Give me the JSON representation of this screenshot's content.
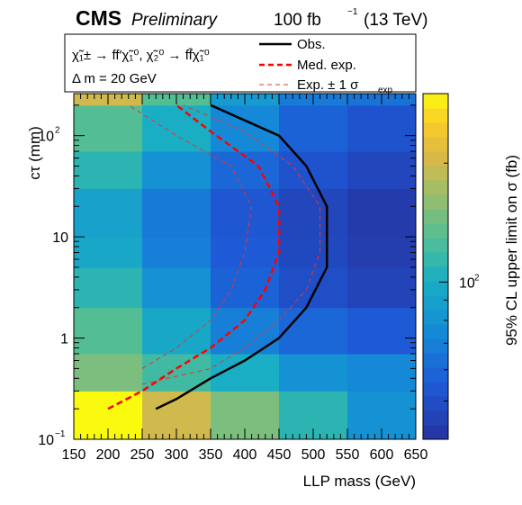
{
  "header": {
    "experiment": "CMS",
    "status": "Preliminary",
    "lumi_prefix": "100 fb",
    "lumi_exp": "−1",
    "energy": "(13 TeV)"
  },
  "legend": {
    "process_line1": "χ̃",
    "process_text": "χ̃₁± → ff′χ̃₁⁰, χ̃₂⁰ → ff̄χ̃₁⁰",
    "delta_m": "Δ m = 20 GeV",
    "obs_label": "Obs.",
    "med_label": "Med. exp.",
    "exp_label": "Exp. ± 1 σ",
    "exp_sub": "exp"
  },
  "colors": {
    "observed": "#000000",
    "median": "#ff0000",
    "band": "#e8332e"
  },
  "chart_data": {
    "type": "heatmap",
    "xlabel": "LLP mass (GeV)",
    "ylabel": "cτ (mm)",
    "zlabel": "95% CL upper limit on σ (fb)",
    "xlim": [
      150,
      650
    ],
    "ylim": [
      0.1,
      260
    ],
    "y_scale": "log",
    "z_scale": "log",
    "x_ticks": [
      "150",
      "200",
      "250",
      "300",
      "350",
      "400",
      "450",
      "500",
      "550",
      "600",
      "650"
    ],
    "y_ticks": [
      {
        "value": 0.1,
        "base": "10",
        "exp": "−1"
      },
      {
        "value": 1,
        "base": "1",
        "exp": ""
      },
      {
        "value": 10,
        "base": "10",
        "exp": ""
      },
      {
        "value": 100,
        "base": "10",
        "exp": "2"
      }
    ],
    "z_ticks": [
      {
        "value": 100,
        "base": "10",
        "exp": "2"
      }
    ],
    "x_bins": [
      150,
      250,
      350,
      450,
      550,
      650
    ],
    "y_bins": [
      0.1,
      0.2,
      0.3,
      0.5,
      0.7,
      1,
      2,
      3,
      5,
      7,
      10,
      20,
      30,
      50,
      70,
      100,
      200,
      260
    ],
    "z_range": [
      40,
      300
    ],
    "cells": [
      [
        300,
        200,
        150,
        110,
        80
      ],
      [
        300,
        200,
        150,
        110,
        80
      ],
      [
        150,
        120,
        100,
        80,
        75
      ],
      [
        150,
        120,
        100,
        80,
        75
      ],
      [
        130,
        95,
        70,
        60,
        55
      ],
      [
        130,
        95,
        70,
        60,
        55
      ],
      [
        110,
        80,
        58,
        50,
        46
      ],
      [
        110,
        80,
        58,
        50,
        46
      ],
      [
        95,
        70,
        55,
        48,
        44
      ],
      [
        95,
        70,
        55,
        48,
        44
      ],
      [
        90,
        68,
        54,
        47,
        43
      ],
      [
        90,
        68,
        54,
        47,
        43
      ],
      [
        110,
        80,
        60,
        52,
        47
      ],
      [
        110,
        80,
        60,
        52,
        47
      ],
      [
        130,
        100,
        75,
        58,
        52
      ],
      [
        130,
        100,
        75,
        58,
        52
      ],
      [
        200,
        130,
        85,
        68,
        65
      ]
    ],
    "series": [
      {
        "name": "Obs.",
        "style": "solid",
        "points": [
          [
            270,
            0.2
          ],
          [
            300,
            0.25
          ],
          [
            350,
            0.4
          ],
          [
            400,
            0.6
          ],
          [
            450,
            1.0
          ],
          [
            490,
            2.0
          ],
          [
            520,
            5.0
          ],
          [
            520,
            20
          ],
          [
            490,
            50
          ],
          [
            450,
            100
          ],
          [
            350,
            200
          ]
        ]
      },
      {
        "name": "Med. exp.",
        "style": "dashed",
        "points": [
          [
            200,
            0.2
          ],
          [
            250,
            0.3
          ],
          [
            300,
            0.5
          ],
          [
            350,
            0.8
          ],
          [
            400,
            1.5
          ],
          [
            430,
            3.0
          ],
          [
            450,
            7.0
          ],
          [
            450,
            20
          ],
          [
            420,
            50
          ],
          [
            350,
            110
          ],
          [
            300,
            200
          ]
        ]
      },
      {
        "name": "Exp. + 1 σ",
        "style": "thin-dashed",
        "points": [
          [
            250,
            0.5
          ],
          [
            300,
            0.8
          ],
          [
            350,
            1.5
          ],
          [
            380,
            3.0
          ],
          [
            400,
            7.0
          ],
          [
            410,
            20
          ],
          [
            380,
            50
          ],
          [
            300,
            100
          ],
          [
            230,
            200
          ]
        ]
      },
      {
        "name": "Exp. − 1 σ",
        "style": "thin-dashed",
        "points": [
          [
            250,
            0.35
          ],
          [
            350,
            0.5
          ],
          [
            400,
            0.8
          ],
          [
            450,
            1.5
          ],
          [
            490,
            3.0
          ],
          [
            510,
            7.0
          ],
          [
            510,
            20
          ],
          [
            470,
            50
          ],
          [
            400,
            110
          ],
          [
            310,
            200
          ]
        ]
      }
    ]
  }
}
